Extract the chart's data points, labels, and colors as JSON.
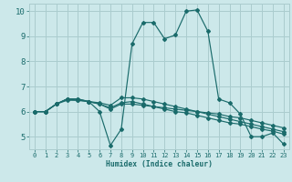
{
  "xlabel": "Humidex (Indice chaleur)",
  "xlim": [
    -0.5,
    23.5
  ],
  "ylim": [
    4.5,
    10.3
  ],
  "xticks": [
    0,
    1,
    2,
    3,
    4,
    5,
    6,
    7,
    8,
    9,
    10,
    11,
    12,
    13,
    14,
    15,
    16,
    17,
    18,
    19,
    20,
    21,
    22,
    23
  ],
  "yticks": [
    5,
    6,
    7,
    8,
    9,
    10
  ],
  "bg_color": "#cce8ea",
  "grid_color": "#aaccce",
  "line_color": "#1a6b6b",
  "series": [
    {
      "x": [
        0,
        1,
        2,
        3,
        4,
        5,
        6,
        7,
        8,
        9,
        10,
        11,
        12,
        13,
        14,
        15,
        16,
        17,
        18,
        19,
        20,
        21,
        22,
        23
      ],
      "y": [
        6.0,
        6.0,
        6.3,
        6.5,
        6.5,
        6.4,
        6.0,
        4.65,
        5.3,
        8.7,
        9.55,
        9.55,
        8.9,
        9.05,
        10.0,
        10.05,
        9.2,
        6.5,
        6.35,
        5.9,
        5.0,
        5.0,
        5.15,
        4.7
      ]
    },
    {
      "x": [
        0,
        1,
        2,
        3,
        4,
        5,
        6,
        7,
        8,
        9,
        10,
        11,
        12,
        13,
        14,
        15,
        16,
        17,
        18,
        19,
        20,
        21,
        22,
        23
      ],
      "y": [
        6.0,
        6.0,
        6.3,
        6.45,
        6.45,
        6.4,
        6.3,
        6.1,
        6.3,
        6.3,
        6.25,
        6.2,
        6.15,
        6.1,
        6.05,
        6.0,
        5.95,
        5.9,
        5.8,
        5.75,
        5.65,
        5.55,
        5.45,
        5.35
      ]
    },
    {
      "x": [
        0,
        1,
        2,
        3,
        4,
        5,
        6,
        7,
        8,
        9,
        10,
        11,
        12,
        13,
        14,
        15,
        16,
        17,
        18,
        19,
        20,
        21,
        22,
        23
      ],
      "y": [
        6.0,
        6.0,
        6.3,
        6.5,
        6.5,
        6.4,
        6.35,
        6.25,
        6.55,
        6.55,
        6.5,
        6.4,
        6.3,
        6.2,
        6.1,
        6.0,
        5.9,
        5.8,
        5.7,
        5.6,
        5.5,
        5.4,
        5.3,
        5.2
      ]
    },
    {
      "x": [
        0,
        1,
        2,
        3,
        4,
        5,
        6,
        7,
        8,
        9,
        10,
        11,
        12,
        13,
        14,
        15,
        16,
        17,
        18,
        19,
        20,
        21,
        22,
        23
      ],
      "y": [
        6.0,
        6.0,
        6.3,
        6.5,
        6.45,
        6.4,
        6.3,
        6.15,
        6.35,
        6.4,
        6.3,
        6.2,
        6.1,
        6.0,
        5.95,
        5.85,
        5.75,
        5.65,
        5.55,
        5.5,
        5.4,
        5.3,
        5.22,
        5.1
      ]
    }
  ]
}
